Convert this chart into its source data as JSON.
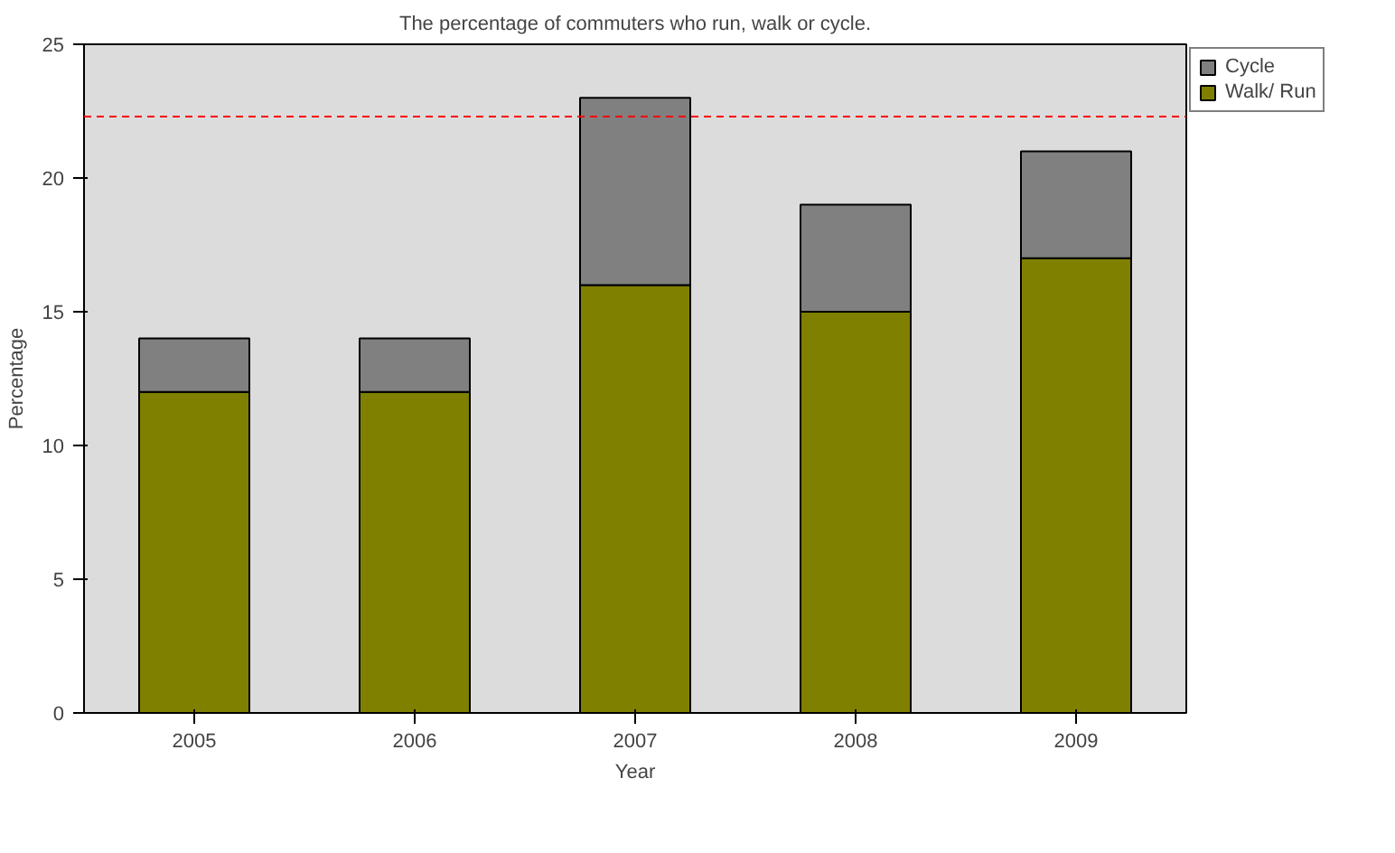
{
  "chart_data": {
    "type": "bar",
    "title": "The percentage of commuters who run, walk or cycle.",
    "xlabel": "Year",
    "ylabel": "Percentage",
    "categories": [
      "2005",
      "2006",
      "2007",
      "2008",
      "2009"
    ],
    "stacked": true,
    "series": [
      {
        "name": "Walk/ Run",
        "color": "#808000",
        "values": [
          12,
          12,
          16,
          15,
          17
        ]
      },
      {
        "name": "Cycle",
        "color": "#808080",
        "values": [
          2,
          2,
          7,
          4,
          4
        ]
      }
    ],
    "ylim": [
      0,
      25
    ],
    "yticks": [
      0,
      5,
      10,
      15,
      20,
      25
    ],
    "grid": false,
    "legend": "top right",
    "ref_lines": [
      {
        "axis": "y",
        "value": 22.3,
        "color": "#ff0000",
        "line_style": "dashed"
      }
    ]
  }
}
